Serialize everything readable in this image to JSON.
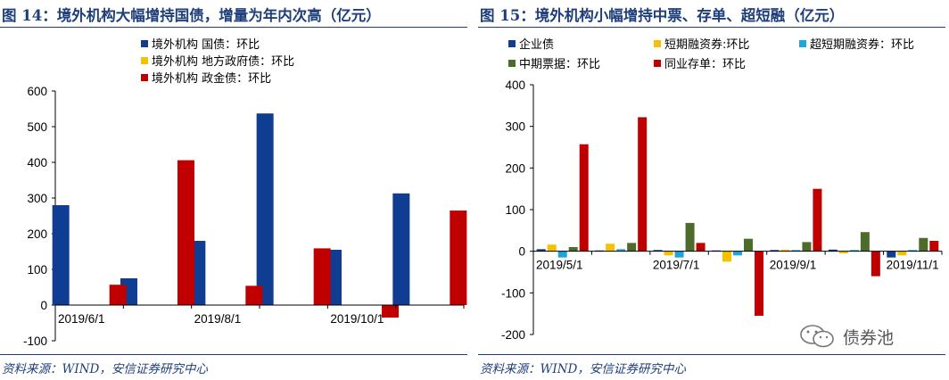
{
  "panels": [
    {
      "title": "图 14：境外机构大幅增持国债，增量为年内次高（亿元）",
      "source": "资料来源：WIND，安信证券研究中心"
    },
    {
      "title": "图 15：境外机构小幅增持中票、存单、超短融（亿元）",
      "source": "资料来源：WIND，安信证券研究中心"
    }
  ],
  "watermark": {
    "text": "债券池",
    "icon": "wechat-icon"
  },
  "chart_data": [
    {
      "type": "bar",
      "title": "图 14：境外机构大幅增持国债，增量为年内次高（亿元）",
      "categories": [
        "2019-05",
        "2019-06",
        "2019-07",
        "2019-08",
        "2019-09",
        "2019-10"
      ],
      "x_tick_labels": [
        {
          "label": "2019/6/1",
          "index": 0
        },
        {
          "label": "2019/8/1",
          "index": 2
        },
        {
          "label": "2019/10/1",
          "index": 4
        }
      ],
      "y_ticks": [
        -100,
        0,
        100,
        200,
        300,
        400,
        500,
        600
      ],
      "ylim": [
        -100,
        600
      ],
      "legend_position": "top",
      "series": [
        {
          "name": "境外机构 国债：环比",
          "color": "#0f3d91",
          "values": [
            280,
            75,
            180,
            537,
            155,
            313
          ]
        },
        {
          "name": "境外机构 地方政府债：环比",
          "color": "#f5c100",
          "values": [
            0,
            0,
            0,
            0,
            0,
            0
          ]
        },
        {
          "name": "境外机构 政金债：环比",
          "color": "#c00000",
          "values": [
            57,
            406,
            54,
            159,
            -35,
            265
          ]
        }
      ]
    },
    {
      "type": "bar",
      "title": "图 15：境外机构小幅增持中票、存单、超短融（亿元）",
      "categories": [
        "2019-05",
        "2019-06",
        "2019-07",
        "2019-08",
        "2019-09",
        "2019-10",
        "2019-11"
      ],
      "x_tick_labels": [
        {
          "label": "2019/5/1",
          "index": 0
        },
        {
          "label": "2019/7/1",
          "index": 2
        },
        {
          "label": "2019/9/1",
          "index": 4
        },
        {
          "label": "2019/11/1",
          "index": 6
        }
      ],
      "y_ticks": [
        -200,
        -100,
        0,
        100,
        200,
        300,
        400
      ],
      "ylim": [
        -200,
        400
      ],
      "legend_position": "top",
      "series": [
        {
          "name": "企业债",
          "color": "#0f3d91",
          "values": [
            5,
            2,
            3,
            2,
            3,
            4,
            -15
          ]
        },
        {
          "name": "短期融资券:环比",
          "color": "#f5c100",
          "values": [
            16,
            18,
            -10,
            -25,
            4,
            -5,
            -10
          ]
        },
        {
          "name": "超短期融资券：环比",
          "color": "#1fa5d8",
          "values": [
            -15,
            5,
            -15,
            -10,
            3,
            3,
            3
          ]
        },
        {
          "name": "中期票据：环比",
          "color": "#4e6b2c",
          "values": [
            10,
            20,
            68,
            30,
            22,
            46,
            32
          ]
        },
        {
          "name": "同业存单：环比",
          "color": "#c00000",
          "values": [
            257,
            322,
            20,
            -155,
            150,
            -60,
            25
          ]
        }
      ]
    }
  ]
}
